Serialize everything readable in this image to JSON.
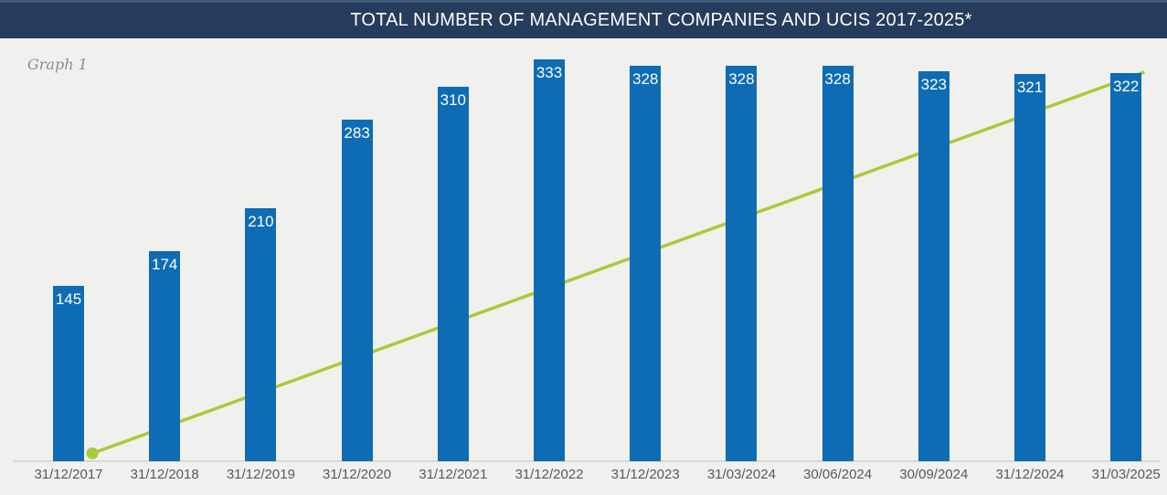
{
  "header": {
    "title": "TOTAL NUMBER OF MANAGEMENT COMPANIES AND UCIS 2017-2025*"
  },
  "graph_label": "Graph 1",
  "colors": {
    "header_bg": "#263C5C",
    "header_top_edge": "#3E5878",
    "background": "#F0F0EE",
    "bar": "#0E6CB4",
    "bar_label": "#FFFFFF",
    "trend_line": "#A8CB39",
    "axis_line": "#D8D8D5",
    "tick_label": "#595959",
    "graph_label_text": "#8C8C8C"
  },
  "chart_data": {
    "type": "bar",
    "title": "TOTAL NUMBER OF MANAGEMENT COMPANIES AND UCIS 2017-2025*",
    "categories": [
      "31/12/2017",
      "31/12/2018",
      "31/12/2019",
      "31/12/2020",
      "31/12/2021",
      "31/12/2022",
      "31/12/2023",
      "31/03/2024",
      "30/06/2024",
      "30/09/2024",
      "31/12/2024",
      "31/03/2025"
    ],
    "series": [
      {
        "name": "total-management-companies-and-ucis",
        "type": "bar",
        "color": "#0E6CB4",
        "values": [
          145,
          174,
          210,
          283,
          310,
          333,
          328,
          328,
          328,
          323,
          321,
          322
        ],
        "value_label_position": "inside-top"
      }
    ],
    "trend_line": {
      "type": "line",
      "shape": "straight",
      "color": "#A8CB39",
      "start": {
        "category": "31/12/2017",
        "approx_value": 5,
        "marker": "dot"
      },
      "end": {
        "category": "31/03/2025",
        "approx_value": 321,
        "marker": "none"
      },
      "drawn_behind_bars": true,
      "data_labels": "none"
    },
    "xlabel": "",
    "ylabel": "",
    "ylim": [
      0,
      345
    ],
    "gridlines": false,
    "legend": "none"
  }
}
